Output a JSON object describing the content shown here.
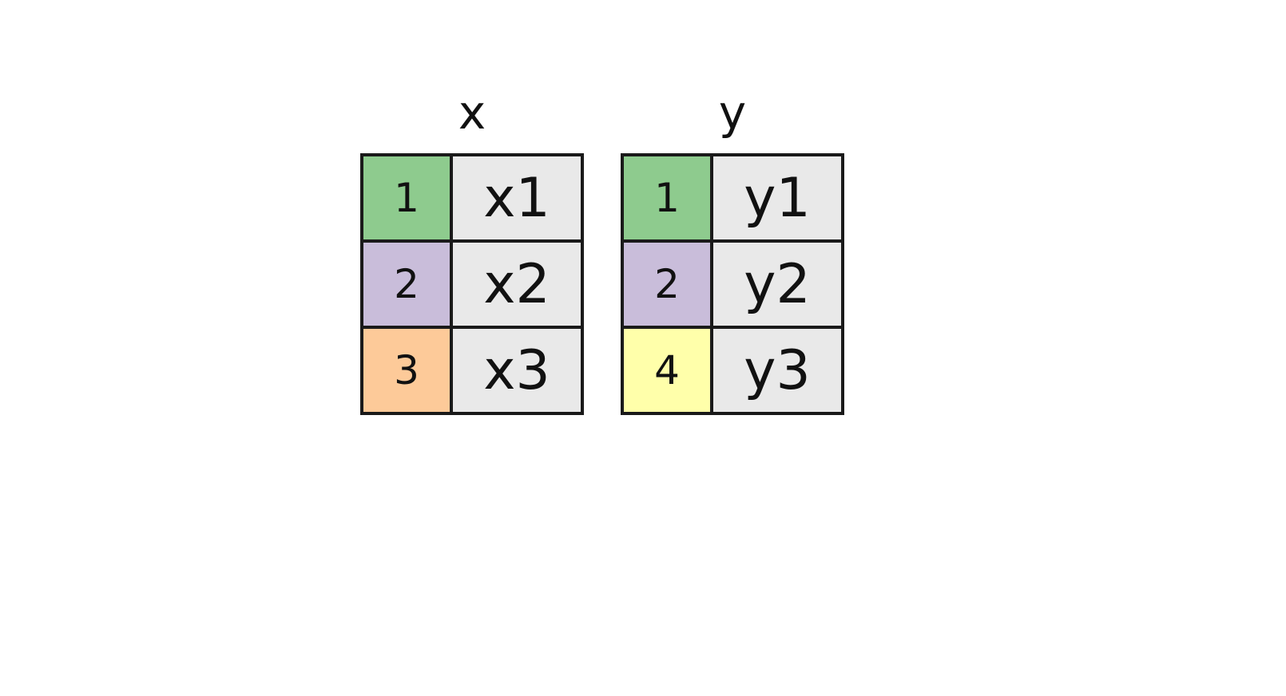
{
  "tables": [
    {
      "name": "x",
      "rows": [
        {
          "key": "1",
          "value": "x1",
          "key_color": "#8ecb8e"
        },
        {
          "key": "2",
          "value": "x2",
          "key_color": "#c9bdda"
        },
        {
          "key": "3",
          "value": "x3",
          "key_color": "#fdca99"
        }
      ]
    },
    {
      "name": "y",
      "rows": [
        {
          "key": "1",
          "value": "y1",
          "key_color": "#8ecb8e"
        },
        {
          "key": "2",
          "value": "y2",
          "key_color": "#c9bdda"
        },
        {
          "key": "4",
          "value": "y3",
          "key_color": "#ffffaa"
        }
      ]
    }
  ],
  "colors": {
    "value_cell_bg": "#e9e9e9",
    "border": "#1a1a1a"
  }
}
